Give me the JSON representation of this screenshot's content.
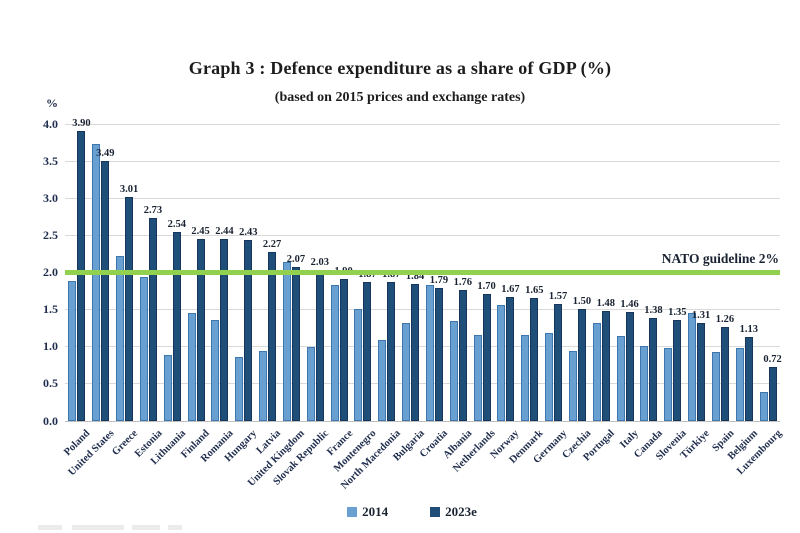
{
  "header": {
    "title": "Graph 3 : Defence expenditure as a share of GDP (%)",
    "subtitle": "(based on 2015 prices and exchange rates)"
  },
  "y_axis": {
    "unit": "%",
    "ticks": [
      "4.0",
      "3.5",
      "3.0",
      "2.5",
      "2.0",
      "1.5",
      "1.0",
      "0.5",
      "0.0"
    ]
  },
  "legend": [
    {
      "label": "2014",
      "color": "#69a0d2"
    },
    {
      "label": "2023e",
      "color": "#1f4e79"
    }
  ],
  "chart_data": {
    "type": "bar",
    "title": "Graph 3 : Defence expenditure as a share of GDP (%)",
    "subtitle": "(based on 2015 prices and exchange rates)",
    "ylabel": "%",
    "ylim": [
      0,
      4.0
    ],
    "ytick_step": 0.5,
    "grid": "horizontal",
    "legend_position": "bottom",
    "data_labels_on": "2023e",
    "categories": [
      "Poland",
      "United States",
      "Greece",
      "Estonia",
      "Lithuania",
      "Finland",
      "Romania",
      "Hungary",
      "Latvia",
      "United Kingdom",
      "Slovak Republic",
      "France",
      "Montenegro",
      "North Macedonia",
      "Bulgaria",
      "Croatia",
      "Albania",
      "Netherlands",
      "Norway",
      "Denmark",
      "Germany",
      "Czechia",
      "Portugal",
      "Italy",
      "Canada",
      "Slovenia",
      "Türkiye",
      "Spain",
      "Belgium",
      "Luxembourg"
    ],
    "series": [
      {
        "name": "2014",
        "color": "#69a0d2",
        "values": [
          1.88,
          3.72,
          2.22,
          1.93,
          0.88,
          1.45,
          1.35,
          0.86,
          0.94,
          2.14,
          0.99,
          1.82,
          1.5,
          1.09,
          1.31,
          1.82,
          1.34,
          1.15,
          1.55,
          1.15,
          1.18,
          0.94,
          1.31,
          1.14,
          1.01,
          0.98,
          1.45,
          0.92,
          0.97,
          0.38
        ]
      },
      {
        "name": "2023e",
        "color": "#1f4e79",
        "values": [
          3.9,
          3.49,
          3.01,
          2.73,
          2.54,
          2.45,
          2.44,
          2.43,
          2.27,
          2.07,
          2.03,
          1.9,
          1.87,
          1.87,
          1.84,
          1.79,
          1.76,
          1.7,
          1.67,
          1.65,
          1.57,
          1.5,
          1.48,
          1.46,
          1.38,
          1.35,
          1.31,
          1.26,
          1.13,
          0.72
        ]
      }
    ],
    "guideline": {
      "value": 2.0,
      "color": "#92d050",
      "label": "NATO guideline 2%"
    }
  }
}
